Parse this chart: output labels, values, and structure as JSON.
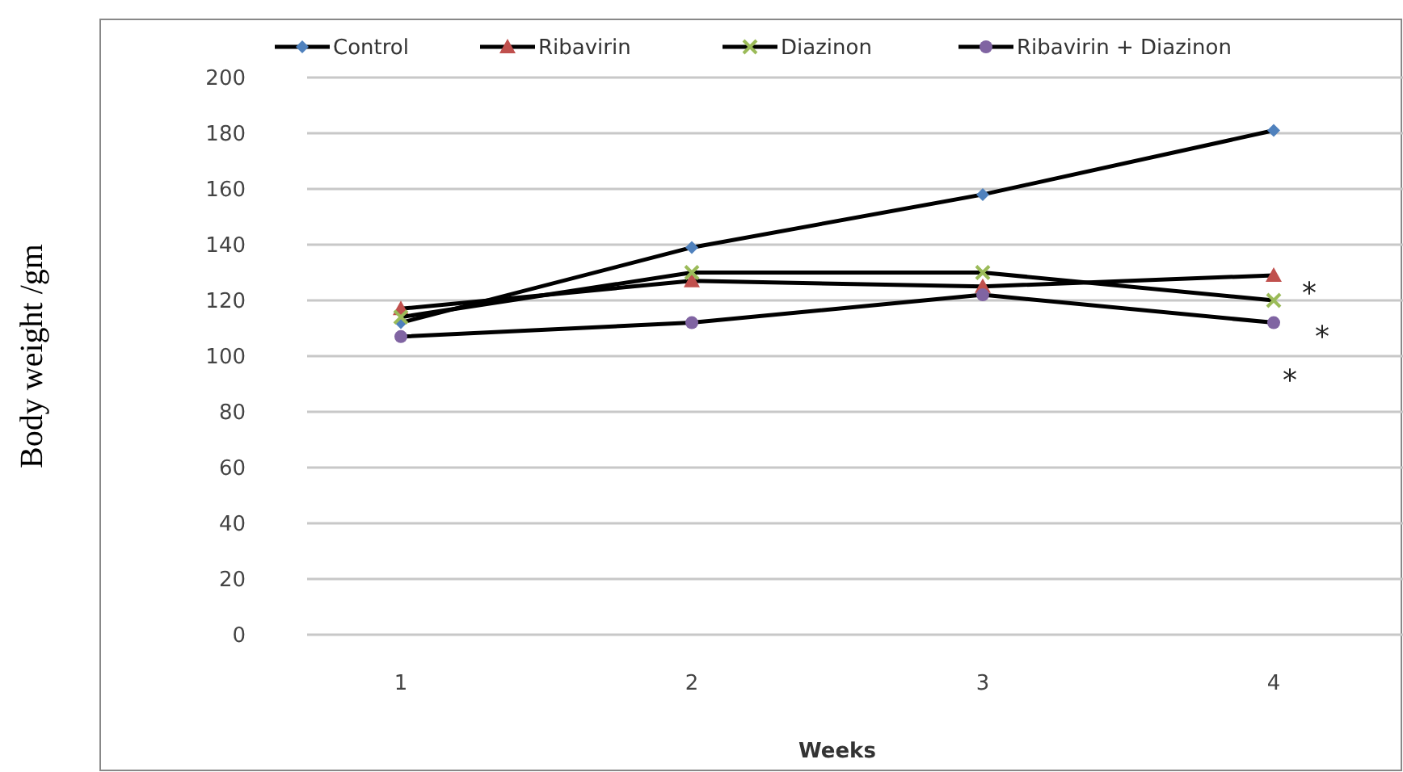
{
  "chart_data": {
    "type": "line",
    "xlabel": "Weeks",
    "ylabel": "Body weight /gm",
    "categories": [
      "1",
      "2",
      "3",
      "4"
    ],
    "series": [
      {
        "name": "Control",
        "color": "#4f81bd",
        "marker": "diamond",
        "values": [
          112,
          139,
          158,
          181
        ]
      },
      {
        "name": "Ribavirin",
        "color": "#c0504d",
        "marker": "triangle",
        "values": [
          117,
          127,
          125,
          129
        ]
      },
      {
        "name": "Diazinon",
        "color": "#9bbb59",
        "marker": "cross",
        "values": [
          114,
          130,
          130,
          120
        ]
      },
      {
        "name": "Ribavirin + Diazinon",
        "color": "#8064a2",
        "marker": "circle",
        "values": [
          107,
          112,
          122,
          112
        ]
      }
    ],
    "ylim": [
      0,
      200
    ],
    "yticks": [
      0,
      20,
      40,
      60,
      80,
      100,
      120,
      140,
      160,
      180,
      200
    ],
    "grid": "y",
    "legend": "top",
    "line_style": "solid",
    "annotations": [
      "*",
      "*",
      "*"
    ]
  }
}
